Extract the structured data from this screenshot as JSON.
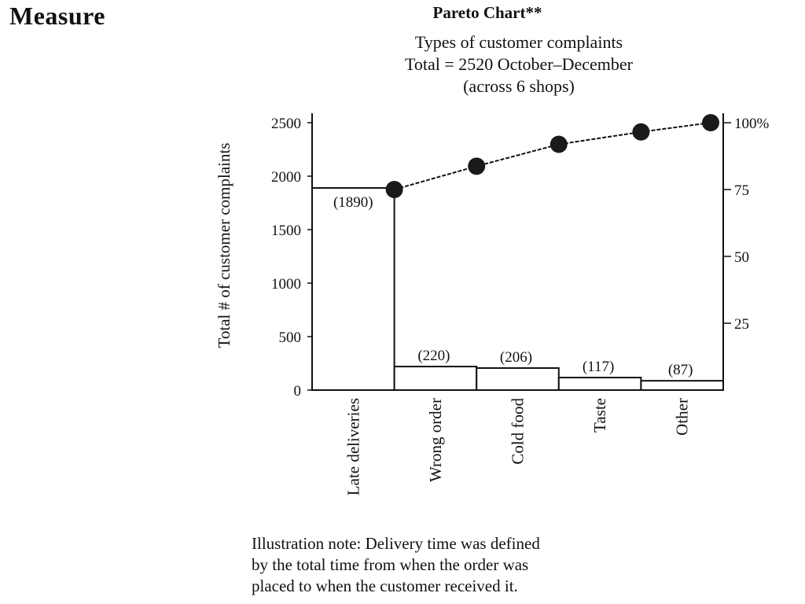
{
  "slide": {
    "heading": "Measure"
  },
  "chart_data": {
    "type": "bar",
    "title": "Pareto Chart**",
    "subtitle_lines": [
      "Types of customer complaints",
      "Total = 2520 October–December",
      "(across 6 shops)"
    ],
    "ylabel": "Total # of customer complaints",
    "categories": [
      "Late deliveries",
      "Wrong order",
      "Cold food",
      "Taste",
      "Other"
    ],
    "values": [
      1890,
      220,
      206,
      117,
      87
    ],
    "value_labels": [
      "(1890)",
      "(220)",
      "(206)",
      "(117)",
      "(87)"
    ],
    "ylim": [
      0,
      2500
    ],
    "yticks": [
      0,
      500,
      1000,
      1500,
      2000,
      2500
    ],
    "ytick_labels": [
      "0",
      "500",
      "1000",
      "1500",
      "2000",
      "2500"
    ],
    "y2_ticks": [
      25,
      50,
      75,
      100
    ],
    "y2_tick_labels": [
      "25",
      "50",
      "75",
      "100%"
    ],
    "y2lim": [
      0,
      100
    ],
    "cumulative_values": [
      1890,
      2110,
      2316,
      2433,
      2520
    ],
    "grid": false,
    "legend": "none"
  },
  "note": {
    "lines": [
      "Illustration note: Delivery time was defined",
      "by the total time from when the order was",
      "placed to when the customer received it."
    ]
  }
}
